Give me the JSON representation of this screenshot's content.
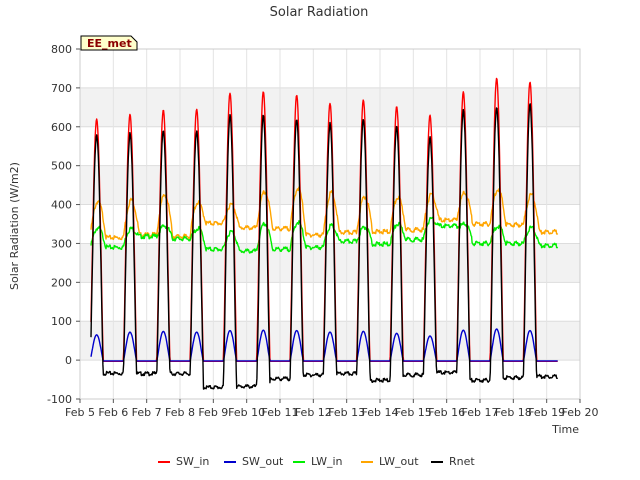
{
  "chart_data": {
    "type": "line",
    "title": "Solar Radiation",
    "xlabel": "Time",
    "ylabel": "Solar Radiation (W/m2)",
    "badge": "EE_met",
    "xlim": [
      5,
      20
    ],
    "ylim": [
      -100,
      800
    ],
    "x_ticks": [
      5,
      6,
      7,
      8,
      9,
      10,
      11,
      12,
      13,
      14,
      15,
      16,
      17,
      18,
      19,
      20
    ],
    "x_tick_labels": [
      "Feb 5",
      "Feb 6",
      "Feb 7",
      "Feb 8",
      "Feb 9",
      "Feb 10",
      "Feb 11",
      "Feb 12",
      "Feb 13",
      "Feb 14",
      "Feb 15",
      "Feb 16",
      "Feb 17",
      "Feb 18",
      "Feb 19",
      "Feb 20"
    ],
    "y_ticks": [
      -100,
      0,
      100,
      200,
      300,
      400,
      500,
      600,
      700,
      800
    ],
    "y_tick_labels": [
      "-100",
      "0",
      "100",
      "200",
      "300",
      "400",
      "500",
      "600",
      "700",
      "800"
    ],
    "x_start": 5.33,
    "x_end": 19.33,
    "days": [
      5.5,
      6.5,
      7.5,
      8.5,
      9.5,
      10.5,
      11.5,
      12.5,
      13.5,
      14.5,
      15.5,
      16.5,
      17.5,
      18.5
    ],
    "legend_position": "bottom",
    "grid": true,
    "series": [
      {
        "name": "SW_in",
        "color": "#ff0000",
        "night": -3,
        "peaks": [
          620,
          632,
          643,
          645,
          686,
          690,
          681,
          660,
          669,
          652,
          630,
          690,
          725,
          715
        ]
      },
      {
        "name": "SW_out",
        "color": "#0000cc",
        "night": -2,
        "peaks": [
          65,
          72,
          74,
          72,
          76,
          77,
          76,
          72,
          74,
          69,
          62,
          77,
          80,
          76
        ]
      },
      {
        "name": "LW_in",
        "color": "#00ee00",
        "night": [
          283,
          290,
          318,
          312,
          285,
          280,
          285,
          290,
          305,
          298,
          310,
          345,
          300,
          300,
          295
        ],
        "peaks": [
          340,
          338,
          345,
          338,
          330,
          350,
          355,
          345,
          342,
          350,
          362,
          350,
          345,
          340
        ]
      },
      {
        "name": "LW_out",
        "color": "#ffa500",
        "night": [
          318,
          315,
          322,
          318,
          352,
          340,
          338,
          322,
          328,
          330,
          335,
          360,
          350,
          348,
          330
        ],
        "peaks": [
          408,
          412,
          425,
          405,
          400,
          432,
          442,
          430,
          420,
          418,
          425,
          430,
          440,
          425
        ]
      },
      {
        "name": "Rnet",
        "color": "#000000",
        "night": [
          -42,
          -34,
          -35,
          -35,
          -70,
          -68,
          -48,
          -38,
          -35,
          -52,
          -38,
          -32,
          -52,
          -45,
          -42
        ],
        "peaks": [
          580,
          582,
          588,
          590,
          628,
          626,
          620,
          606,
          617,
          602,
          570,
          640,
          652,
          655
        ]
      }
    ]
  }
}
